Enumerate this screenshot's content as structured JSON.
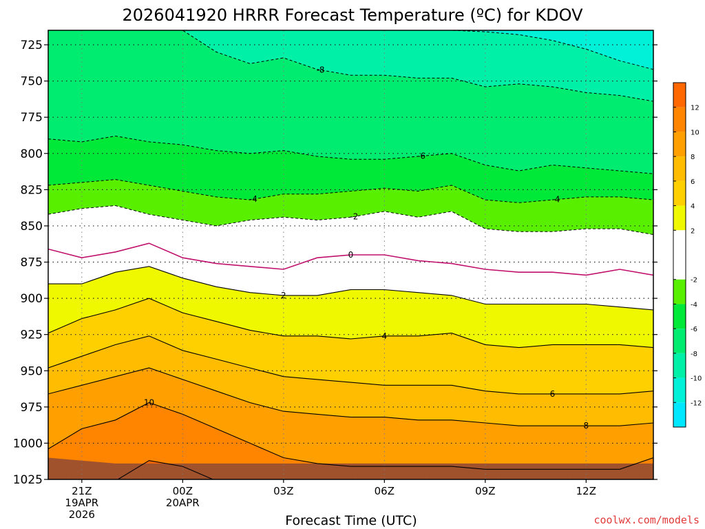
{
  "title": "2026041920 HRRR Forecast Temperature (ºC) for KDOV",
  "credit": "coolwx.com/models",
  "chart_data": {
    "type": "heatmap",
    "title": "2026041920 HRRR Forecast Temperature (ºC) for KDOV",
    "xlabel": "Forecast Time (UTC)",
    "ylabel": "",
    "x_hours": [
      0,
      18
    ],
    "ylim": [
      1025,
      715
    ],
    "y_ticks": [
      725,
      750,
      775,
      800,
      825,
      850,
      875,
      900,
      925,
      950,
      975,
      1000,
      1025
    ],
    "x_ticks": [
      {
        "hour": 1,
        "lines": [
          "21Z",
          "19APR",
          "2026"
        ]
      },
      {
        "hour": 4,
        "lines": [
          "00Z",
          "20APR"
        ]
      },
      {
        "hour": 7,
        "lines": [
          "03Z"
        ]
      },
      {
        "hour": 10,
        "lines": [
          "06Z"
        ]
      },
      {
        "hour": 13,
        "lines": [
          "09Z"
        ]
      },
      {
        "hour": 16,
        "lines": [
          "12Z"
        ]
      }
    ],
    "grid": true,
    "contour_x_hours": [
      0,
      1,
      2,
      3,
      4,
      5,
      6,
      7,
      8,
      9,
      10,
      11,
      12,
      13,
      14,
      15,
      16,
      17,
      18
    ],
    "contours": [
      {
        "level": -10,
        "label": "",
        "p": [
          715,
          715,
          715,
          715,
          715,
          715,
          715,
          715,
          715,
          715,
          715,
          715,
          715,
          716,
          718,
          722,
          728,
          736,
          742
        ]
      },
      {
        "level": -8,
        "label": "-8",
        "p": [
          715,
          715,
          715,
          715,
          715,
          730,
          738,
          734,
          742,
          746,
          746,
          748,
          748,
          754,
          752,
          754,
          758,
          760,
          764
        ]
      },
      {
        "level": -6,
        "label": "-6",
        "p": [
          790,
          792,
          788,
          792,
          794,
          798,
          800,
          798,
          802,
          804,
          804,
          802,
          800,
          808,
          812,
          808,
          810,
          812,
          814
        ]
      },
      {
        "level": -4,
        "label": "-4",
        "p": [
          822,
          820,
          818,
          822,
          826,
          830,
          832,
          828,
          828,
          826,
          824,
          826,
          822,
          832,
          834,
          832,
          830,
          830,
          832
        ]
      },
      {
        "level": -2,
        "label": "-2",
        "p": [
          842,
          838,
          836,
          842,
          846,
          850,
          846,
          844,
          846,
          844,
          840,
          844,
          840,
          852,
          854,
          854,
          852,
          852,
          856
        ]
      },
      {
        "level": 0,
        "label": "0",
        "p": [
          866,
          872,
          868,
          862,
          872,
          876,
          878,
          880,
          872,
          870,
          870,
          874,
          876,
          880,
          882,
          882,
          884,
          880,
          884
        ]
      },
      {
        "level": 2,
        "label": "2",
        "p": [
          890,
          890,
          882,
          878,
          886,
          892,
          896,
          898,
          898,
          894,
          894,
          896,
          898,
          904,
          904,
          904,
          904,
          906,
          908
        ]
      },
      {
        "level": 4,
        "label": "4",
        "p": [
          924,
          914,
          908,
          900,
          910,
          916,
          922,
          926,
          926,
          928,
          926,
          926,
          924,
          932,
          934,
          932,
          932,
          932,
          934
        ]
      },
      {
        "level": 6,
        "label": "6",
        "p": [
          948,
          940,
          932,
          926,
          936,
          942,
          948,
          954,
          956,
          958,
          960,
          960,
          960,
          964,
          966,
          966,
          966,
          966,
          964
        ]
      },
      {
        "level": 8,
        "label": "8",
        "p": [
          966,
          960,
          954,
          948,
          956,
          964,
          972,
          978,
          980,
          982,
          982,
          984,
          984,
          986,
          988,
          988,
          988,
          988,
          986
        ]
      },
      {
        "level": 10,
        "label": "10",
        "p": [
          1004,
          990,
          984,
          972,
          980,
          990,
          1000,
          1010,
          1014,
          1016,
          1016,
          1016,
          1016,
          1018,
          1018,
          1018,
          1018,
          1018,
          1010
        ]
      },
      {
        "level": 12,
        "label": "",
        "p": [
          1026,
          1026,
          1026,
          1012,
          1016,
          1026,
          1026,
          1026,
          1026,
          1026,
          1026,
          1026,
          1026,
          1026,
          1026,
          1026,
          1026,
          1026,
          1026
        ]
      }
    ],
    "label_positions": [
      {
        "level": -8,
        "hour": 8.1
      },
      {
        "level": -6,
        "hour": 11.1
      },
      {
        "level": -4,
        "hour": 6.1
      },
      {
        "level": -4,
        "hour": 15.1
      },
      {
        "level": -2,
        "hour": 9.1
      },
      {
        "level": 0,
        "hour": 9.0
      },
      {
        "level": 2,
        "hour": 7.0
      },
      {
        "level": 4,
        "hour": 10.0
      },
      {
        "level": 6,
        "hour": 15.0
      },
      {
        "level": 8,
        "hour": 16.0
      },
      {
        "level": 10,
        "hour": 3.0
      }
    ],
    "fill_colors": [
      {
        "from": -14,
        "to": -12,
        "color": "#00e8ff"
      },
      {
        "from": -12,
        "to": -10,
        "color": "#00f0d8"
      },
      {
        "from": -10,
        "to": -8,
        "color": "#00f0a8"
      },
      {
        "from": -8,
        "to": -6,
        "color": "#00ec70"
      },
      {
        "from": -6,
        "to": -4,
        "color": "#00e838"
      },
      {
        "from": -4,
        "to": -2,
        "color": "#58f000"
      },
      {
        "from": -2,
        "to": 0,
        "color": "#ffffff"
      },
      {
        "from": 0,
        "to": 2,
        "color": "#ffffff"
      },
      {
        "from": 2,
        "to": 4,
        "color": "#f0f800"
      },
      {
        "from": 4,
        "to": 6,
        "color": "#ffd000"
      },
      {
        "from": 6,
        "to": 8,
        "color": "#ffbc00"
      },
      {
        "from": 8,
        "to": 10,
        "color": "#ffa000"
      },
      {
        "from": 10,
        "to": 12,
        "color": "#ff8400"
      },
      {
        "from": 12,
        "to": 14,
        "color": "#ff6800"
      }
    ],
    "colorbar_ticks": [
      12,
      10,
      8,
      6,
      4,
      2,
      -2,
      -4,
      -6,
      -8,
      -10,
      -12
    ],
    "ground_color": "#a0522d",
    "ground_p": [
      1010,
      1012,
      1014,
      1014,
      1014,
      1014,
      1014,
      1014,
      1014,
      1014,
      1014,
      1014,
      1014,
      1014,
      1014,
      1014,
      1014,
      1014,
      1014
    ]
  }
}
